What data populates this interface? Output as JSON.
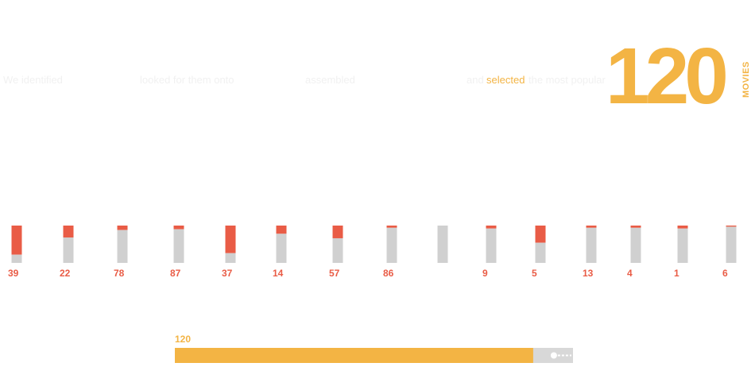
{
  "intro": {
    "part1": "We identified",
    "part2": "looked for them onto",
    "part3": "assembled",
    "part4": "and",
    "highlight": "selected",
    "part5": "the most popular"
  },
  "headline": {
    "count": "120",
    "unit": "MOVIES"
  },
  "colors": {
    "accent": "#f3b444",
    "highlight_segment": "#e95c46",
    "base_segment": "#d0d0d0",
    "progress_track": "#d8d8d8"
  },
  "chart_data": {
    "type": "bar",
    "stacked": true,
    "categories": [
      "39",
      "22",
      "78",
      "87",
      "37",
      "14",
      "57",
      "86",
      "",
      "9",
      "5",
      "13",
      "4",
      "1",
      "6"
    ],
    "series": [
      {
        "values": [
          0.78,
          0.32,
          0.12,
          0.1,
          0.74,
          0.22,
          0.34,
          0.06,
          0.0,
          0.08,
          0.46,
          0.06,
          0.06,
          0.08,
          0.03
        ]
      },
      {
        "values": [
          0.22,
          0.68,
          0.88,
          0.9,
          0.26,
          0.78,
          0.66,
          0.94,
          1.0,
          0.92,
          0.54,
          0.94,
          0.94,
          0.92,
          0.97
        ]
      }
    ],
    "ylim": [
      0,
      1
    ],
    "grid": false,
    "legend": "none"
  },
  "progress": {
    "label": "120",
    "fraction": 0.9
  }
}
